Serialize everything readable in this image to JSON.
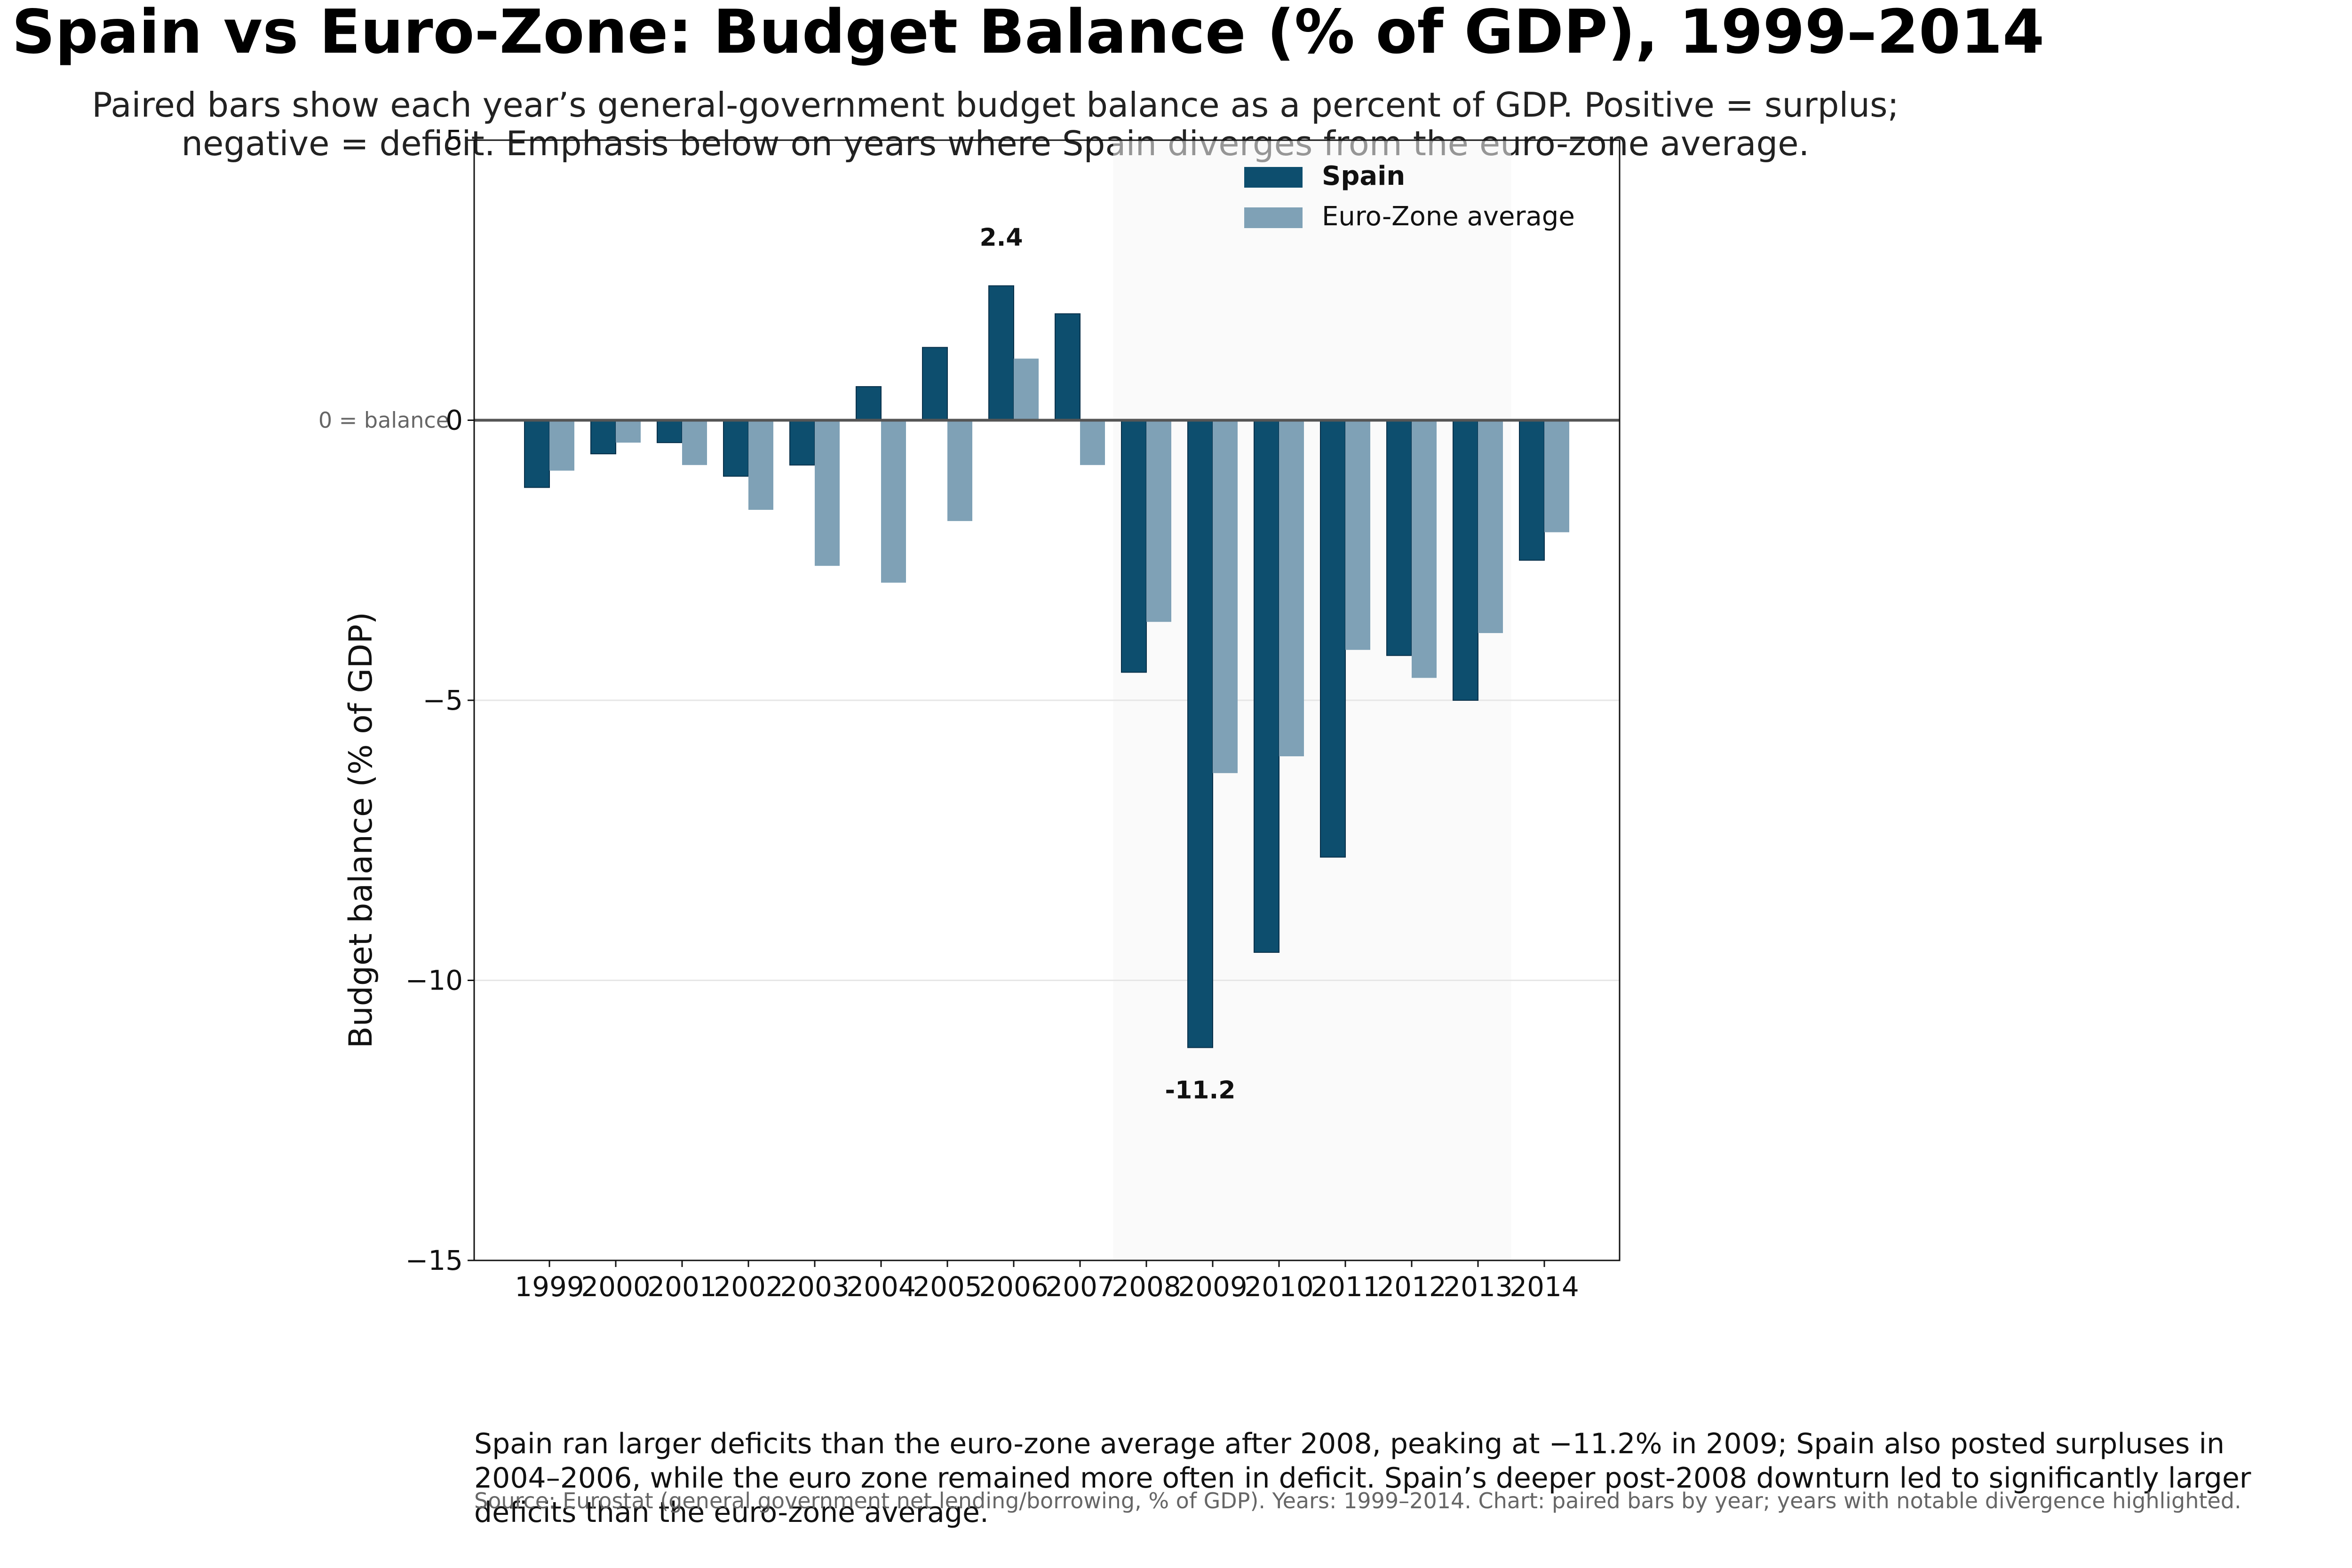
{
  "chart_data": {
    "type": "bar",
    "title": "Spain vs Euro-Zone: Budget Balance (% of GDP), 1999–2014",
    "subtitle_lines": [
      "Paired bars show each year’s general-government budget balance as a percent of GDP. Positive = surplus;",
      "negative = deficit. Emphasis below on years where Spain diverges from the euro-zone average."
    ],
    "ylabel": "Budget balance (% of GDP)",
    "xlabel": "",
    "ylim": [
      -15,
      5
    ],
    "yticks": [
      -15,
      -10,
      -5,
      0,
      5
    ],
    "ytick_labels": [
      "−15",
      "−10",
      "−5",
      "0",
      "5"
    ],
    "categories": [
      "1999",
      "2000",
      "2001",
      "2002",
      "2003",
      "2004",
      "2005",
      "2006",
      "2007",
      "2008",
      "2009",
      "2010",
      "2011",
      "2012",
      "2013",
      "2014"
    ],
    "series": [
      {
        "name": "Spain",
        "color": "#0d4e6e",
        "values": [
          -1.2,
          -0.6,
          -0.4,
          -1.0,
          -0.8,
          0.6,
          1.3,
          2.4,
          1.9,
          -4.5,
          -11.2,
          -9.5,
          -7.8,
          -4.2,
          -5.0,
          -2.5
        ]
      },
      {
        "name": "Euro-Zone average",
        "color": "#7fa1b6",
        "values": [
          -0.9,
          -0.4,
          -0.8,
          -1.6,
          -2.6,
          -2.9,
          -1.8,
          1.1,
          -0.8,
          -3.6,
          -6.3,
          -6.0,
          -4.1,
          -4.6,
          -3.8,
          -2.0
        ]
      }
    ],
    "highlight_span": [
      "2008",
      "2013"
    ],
    "reference_line": {
      "value": 0,
      "label": "0 = balance"
    },
    "annotations": [
      {
        "category": "2006",
        "series": "Spain",
        "text": "2.4"
      },
      {
        "category": "2009",
        "series": "Spain",
        "text": "-11.2"
      }
    ],
    "legend": {
      "placement": "top-right"
    },
    "grid": "horizontal",
    "caption_lines": [
      "Spain ran larger deficits than the euro-zone average after 2008, peaking at −11.2% in 2009; Spain also posted surpluses in",
      "2004–2006, while the euro zone remained more often in deficit. Spain’s deeper post-2008 downturn led to significantly larger",
      "deficits than the euro-zone average."
    ],
    "source": "Source: Eurostat (general government net lending/borrowing, % of GDP). Years: 1999–2014. Chart: paired bars by year; years with notable divergence highlighted."
  }
}
